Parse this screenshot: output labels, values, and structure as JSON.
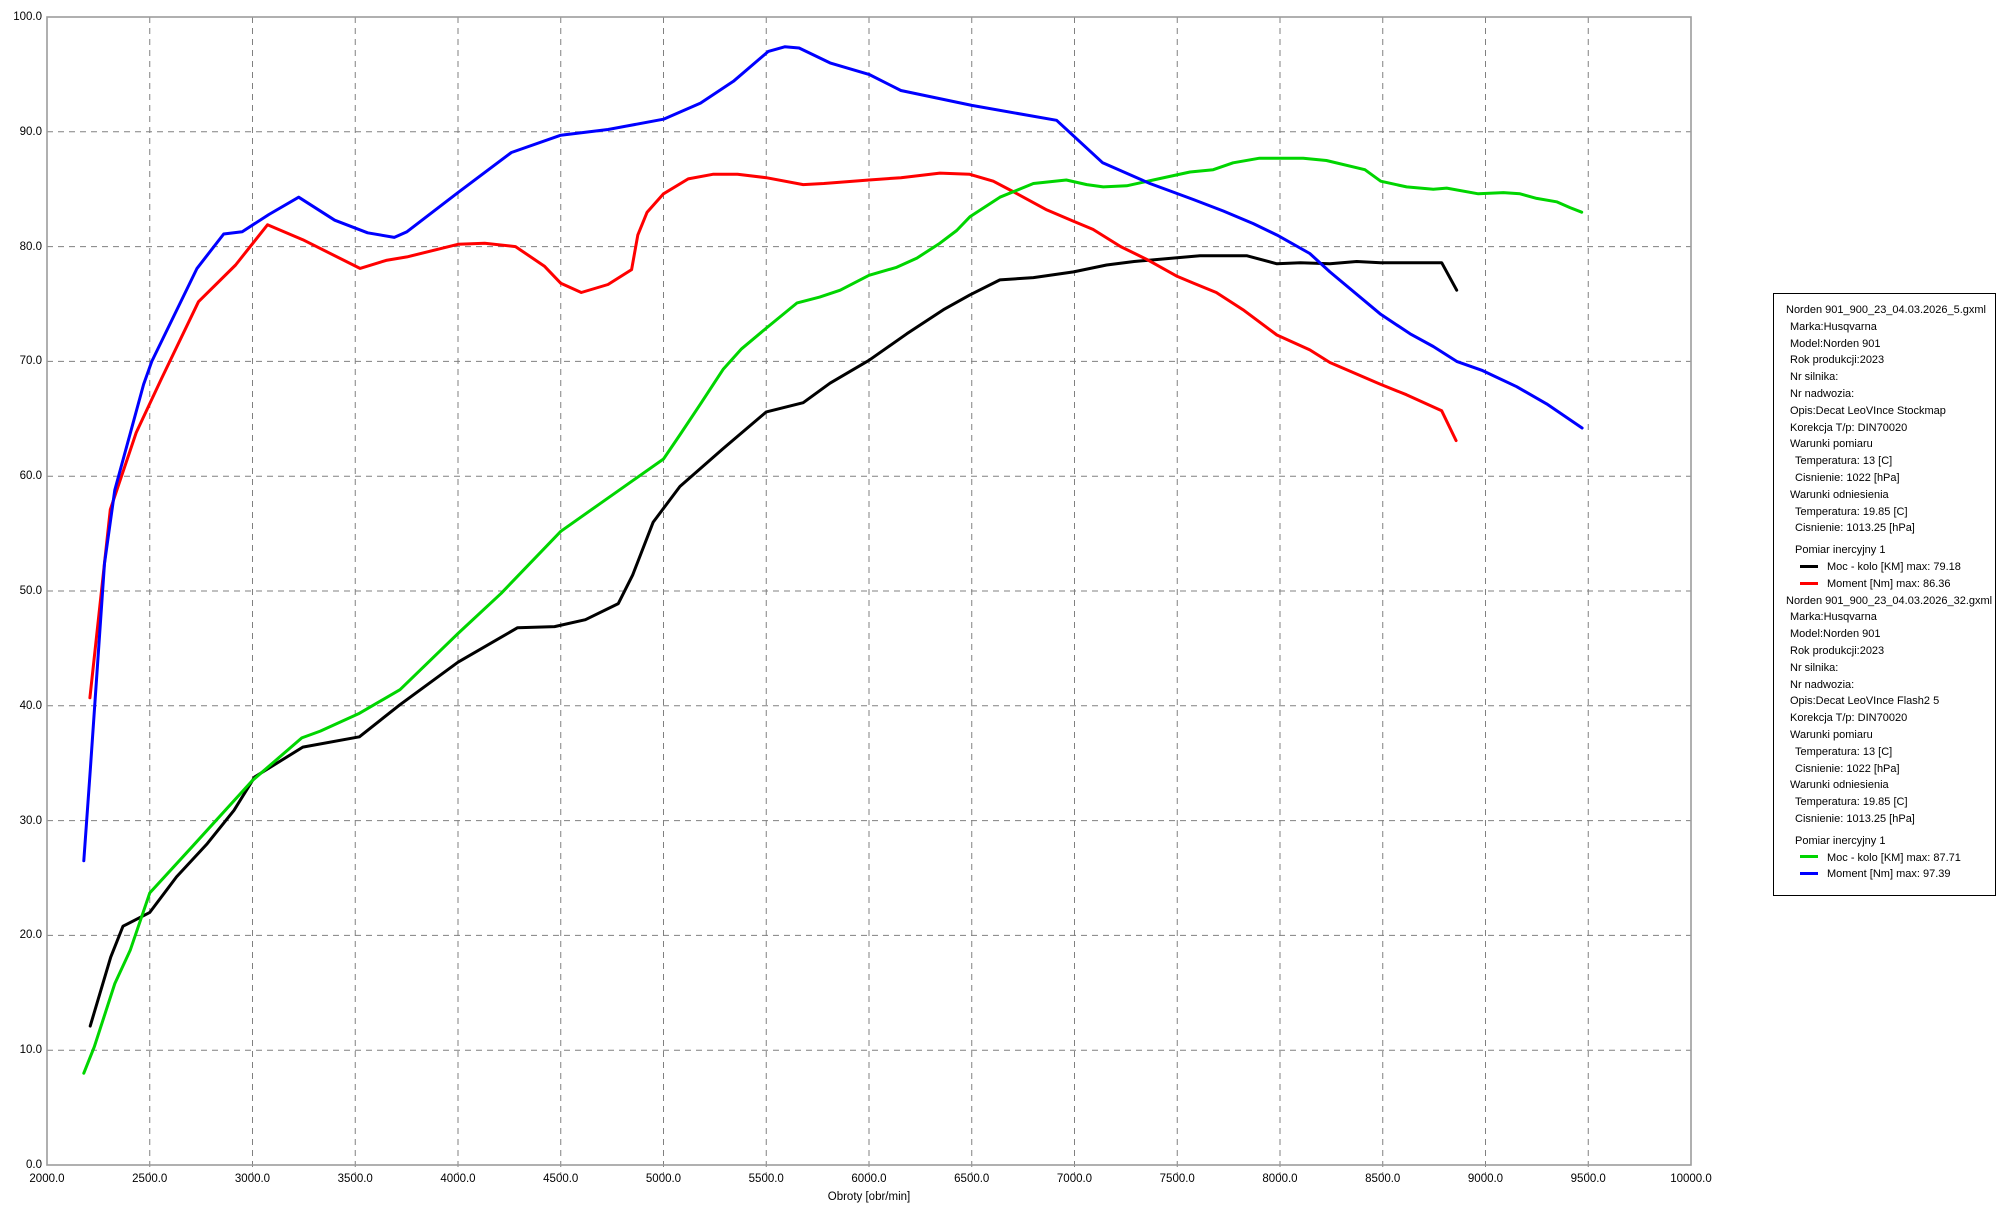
{
  "chart_data": {
    "type": "line",
    "title": "",
    "xlabel": "Obroty [obr/min]",
    "ylabel": "",
    "xlim": [
      2000,
      10000
    ],
    "ylim": [
      0,
      100
    ],
    "x_tick_step": 500,
    "y_tick_step": 10,
    "grid": true,
    "legend_position": "right-panel",
    "series": [
      {
        "name": "Moc - kolo [KM] - Decat LeoVInce Stockmap",
        "color": "#000000",
        "max": 79.18,
        "points": [
          [
            2210,
            12.1
          ],
          [
            2310,
            18.1
          ],
          [
            2370,
            20.8
          ],
          [
            2500,
            22.0
          ],
          [
            2630,
            25.1
          ],
          [
            2780,
            28.0
          ],
          [
            2910,
            30.9
          ],
          [
            3010,
            33.8
          ],
          [
            3245,
            36.4
          ],
          [
            3520,
            37.3
          ],
          [
            3718,
            40.1
          ],
          [
            4000,
            43.8
          ],
          [
            4290,
            46.8
          ],
          [
            4470,
            46.9
          ],
          [
            4620,
            47.5
          ],
          [
            4780,
            48.9
          ],
          [
            4850,
            51.4
          ],
          [
            4950,
            56.0
          ],
          [
            5080,
            59.1
          ],
          [
            5290,
            62.4
          ],
          [
            5500,
            65.6
          ],
          [
            5680,
            66.4
          ],
          [
            5810,
            68.1
          ],
          [
            6000,
            70.1
          ],
          [
            6184,
            72.4
          ],
          [
            6362,
            74.5
          ],
          [
            6492,
            75.8
          ],
          [
            6637,
            77.1
          ],
          [
            6800,
            77.3
          ],
          [
            6995,
            77.8
          ],
          [
            7156,
            78.4
          ],
          [
            7290,
            78.7
          ],
          [
            7416,
            78.9
          ],
          [
            7610,
            79.2
          ],
          [
            7710,
            79.2
          ],
          [
            7840,
            79.2
          ],
          [
            7985,
            78.5
          ],
          [
            8100,
            78.6
          ],
          [
            8243,
            78.5
          ],
          [
            8373,
            78.7
          ],
          [
            8490,
            78.6
          ],
          [
            8633,
            78.6
          ],
          [
            8787,
            78.6
          ],
          [
            8860,
            76.2
          ]
        ]
      },
      {
        "name": "Moment [Nm] - Decat LeoVInce Stockmap",
        "color": "#ff0000",
        "max": 86.36,
        "points": [
          [
            2209,
            40.7
          ],
          [
            2308,
            57.1
          ],
          [
            2434,
            63.8
          ],
          [
            2557,
            68.5
          ],
          [
            2737,
            75.2
          ],
          [
            2918,
            78.4
          ],
          [
            3073,
            81.9
          ],
          [
            3245,
            80.6
          ],
          [
            3523,
            78.1
          ],
          [
            3650,
            78.8
          ],
          [
            3752,
            79.1
          ],
          [
            4000,
            80.2
          ],
          [
            4130,
            80.3
          ],
          [
            4280,
            80.0
          ],
          [
            4420,
            78.3
          ],
          [
            4500,
            76.8
          ],
          [
            4600,
            76.0
          ],
          [
            4730,
            76.7
          ],
          [
            4845,
            78.0
          ],
          [
            4875,
            81.0
          ],
          [
            4920,
            83.0
          ],
          [
            5000,
            84.6
          ],
          [
            5120,
            85.9
          ],
          [
            5240,
            86.3
          ],
          [
            5360,
            86.3
          ],
          [
            5500,
            86.0
          ],
          [
            5680,
            85.4
          ],
          [
            5780,
            85.5
          ],
          [
            6000,
            85.8
          ],
          [
            6155,
            86.0
          ],
          [
            6345,
            86.4
          ],
          [
            6490,
            86.3
          ],
          [
            6605,
            85.7
          ],
          [
            6700,
            84.8
          ],
          [
            6865,
            83.2
          ],
          [
            6995,
            82.2
          ],
          [
            7090,
            81.5
          ],
          [
            7225,
            80.0
          ],
          [
            7350,
            78.9
          ],
          [
            7500,
            77.4
          ],
          [
            7580,
            76.8
          ],
          [
            7690,
            76.0
          ],
          [
            7820,
            74.5
          ],
          [
            7985,
            72.3
          ],
          [
            8145,
            71.0
          ],
          [
            8243,
            69.9
          ],
          [
            8490,
            68.0
          ],
          [
            8615,
            67.1
          ],
          [
            8787,
            65.7
          ],
          [
            8857,
            63.1
          ]
        ]
      },
      {
        "name": "Moc - kolo [KM] - Decat LeoVInce Flash2 5",
        "color": "#00d500",
        "max": 87.71,
        "points": [
          [
            2179,
            8.0
          ],
          [
            2230,
            10.3
          ],
          [
            2330,
            15.8
          ],
          [
            2405,
            18.7
          ],
          [
            2500,
            23.7
          ],
          [
            2700,
            27.6
          ],
          [
            3000,
            33.5
          ],
          [
            3240,
            37.2
          ],
          [
            3330,
            37.8
          ],
          [
            3516,
            39.3
          ],
          [
            3718,
            41.4
          ],
          [
            4000,
            46.3
          ],
          [
            4210,
            49.8
          ],
          [
            4500,
            55.2
          ],
          [
            4690,
            57.6
          ],
          [
            5000,
            61.5
          ],
          [
            5080,
            63.6
          ],
          [
            5180,
            66.3
          ],
          [
            5290,
            69.3
          ],
          [
            5380,
            71.1
          ],
          [
            5500,
            72.9
          ],
          [
            5650,
            75.1
          ],
          [
            5760,
            75.6
          ],
          [
            5860,
            76.2
          ],
          [
            6000,
            77.5
          ],
          [
            6135,
            78.2
          ],
          [
            6233,
            79.0
          ],
          [
            6345,
            80.3
          ],
          [
            6427,
            81.4
          ],
          [
            6491,
            82.6
          ],
          [
            6637,
            84.3
          ],
          [
            6800,
            85.5
          ],
          [
            6960,
            85.8
          ],
          [
            7060,
            85.4
          ],
          [
            7140,
            85.2
          ],
          [
            7254,
            85.3
          ],
          [
            7383,
            85.8
          ],
          [
            7562,
            86.5
          ],
          [
            7675,
            86.7
          ],
          [
            7772,
            87.3
          ],
          [
            7900,
            87.7
          ],
          [
            8030,
            87.7
          ],
          [
            8113,
            87.7
          ],
          [
            8226,
            87.5
          ],
          [
            8413,
            86.7
          ],
          [
            8490,
            85.7
          ],
          [
            8616,
            85.2
          ],
          [
            8746,
            85.0
          ],
          [
            8811,
            85.1
          ],
          [
            8965,
            84.6
          ],
          [
            9087,
            84.7
          ],
          [
            9168,
            84.6
          ],
          [
            9249,
            84.2
          ],
          [
            9346,
            83.9
          ],
          [
            9411,
            83.4
          ],
          [
            9468,
            83.0
          ]
        ]
      },
      {
        "name": "Moment [Nm] - Decat LeoVInce Flash2 5",
        "color": "#0000ff",
        "max": 97.39,
        "points": [
          [
            2179,
            26.5
          ],
          [
            2210,
            34.3
          ],
          [
            2280,
            52.4
          ],
          [
            2330,
            58.8
          ],
          [
            2470,
            68.0
          ],
          [
            2510,
            70.0
          ],
          [
            2730,
            78.1
          ],
          [
            2860,
            81.1
          ],
          [
            2950,
            81.3
          ],
          [
            3080,
            82.8
          ],
          [
            3225,
            84.3
          ],
          [
            3400,
            82.3
          ],
          [
            3560,
            81.2
          ],
          [
            3690,
            80.8
          ],
          [
            3752,
            81.3
          ],
          [
            4000,
            84.7
          ],
          [
            4260,
            88.2
          ],
          [
            4500,
            89.7
          ],
          [
            4730,
            90.2
          ],
          [
            5000,
            91.1
          ],
          [
            5180,
            92.5
          ],
          [
            5340,
            94.4
          ],
          [
            5510,
            97.0
          ],
          [
            5590,
            97.4
          ],
          [
            5660,
            97.3
          ],
          [
            5810,
            96.0
          ],
          [
            6000,
            95.0
          ],
          [
            6155,
            93.6
          ],
          [
            6500,
            92.3
          ],
          [
            6913,
            91.0
          ],
          [
            7137,
            87.3
          ],
          [
            7367,
            85.5
          ],
          [
            7578,
            84.1
          ],
          [
            7724,
            83.1
          ],
          [
            7870,
            82.0
          ],
          [
            7986,
            81.0
          ],
          [
            8145,
            79.4
          ],
          [
            8243,
            77.8
          ],
          [
            8490,
            74.1
          ],
          [
            8633,
            72.4
          ],
          [
            8746,
            71.3
          ],
          [
            8860,
            70.0
          ],
          [
            8986,
            69.2
          ],
          [
            9152,
            67.8
          ],
          [
            9298,
            66.3
          ],
          [
            9470,
            64.2
          ]
        ]
      }
    ]
  },
  "info_panel": {
    "blocks": [
      {
        "lines": [
          {
            "text": "Norden 901_900_23_04.03.2026_5.gxml",
            "indent": 0
          },
          {
            "text": "Marka:Husqvarna",
            "indent": 1
          },
          {
            "text": "Model:Norden 901",
            "indent": 1
          },
          {
            "text": "Rok produkcji:2023",
            "indent": 1
          },
          {
            "text": "Nr silnika:",
            "indent": 1
          },
          {
            "text": "Nr nadwozia:",
            "indent": 1
          },
          {
            "text": "Opis:Decat LeoVInce Stockmap",
            "indent": 1
          },
          {
            "text": "Korekcja T/p: DIN70020",
            "indent": 1
          },
          {
            "text": "Warunki pomiaru",
            "indent": 1
          },
          {
            "text": "Temperatura: 13 [C]",
            "indent": 2
          },
          {
            "text": "Cisnienie: 1022 [hPa]",
            "indent": 2
          },
          {
            "text": "Warunki odniesienia",
            "indent": 1
          },
          {
            "text": "Temperatura: 19.85 [C]",
            "indent": 2
          },
          {
            "text": "Cisnienie: 1013.25 [hPa]",
            "indent": 2
          }
        ],
        "pomiar_header": "Pomiar inercyjny 1",
        "entries": [
          {
            "color": "#000000",
            "label": "Moc - kolo [KM] max: 79.18"
          },
          {
            "color": "#ff0000",
            "label": "Moment [Nm] max: 86.36"
          }
        ]
      },
      {
        "lines": [
          {
            "text": "Norden 901_900_23_04.03.2026_32.gxml",
            "indent": 0
          },
          {
            "text": "Marka:Husqvarna",
            "indent": 1
          },
          {
            "text": "Model:Norden 901",
            "indent": 1
          },
          {
            "text": "Rok produkcji:2023",
            "indent": 1
          },
          {
            "text": "Nr silnika:",
            "indent": 1
          },
          {
            "text": "Nr nadwozia:",
            "indent": 1
          },
          {
            "text": "Opis:Decat LeoVInce Flash2 5",
            "indent": 1
          },
          {
            "text": "Korekcja T/p: DIN70020",
            "indent": 1
          },
          {
            "text": "Warunki pomiaru",
            "indent": 1
          },
          {
            "text": "Temperatura: 13 [C]",
            "indent": 2
          },
          {
            "text": "Cisnienie: 1022 [hPa]",
            "indent": 2
          },
          {
            "text": "Warunki odniesienia",
            "indent": 1
          },
          {
            "text": "Temperatura: 19.85 [C]",
            "indent": 2
          },
          {
            "text": "Cisnienie: 1013.25 [hPa]",
            "indent": 2
          }
        ],
        "pomiar_header": "Pomiar inercyjny 1",
        "entries": [
          {
            "color": "#00d500",
            "label": "Moc - kolo [KM] max: 87.71"
          },
          {
            "color": "#0000ff",
            "label": "Moment [Nm] max: 97.39"
          }
        ]
      }
    ]
  },
  "style_colors": {
    "grid": "#808080",
    "plot_border": "#9c9c9c",
    "background": "#ffffff",
    "text": "#000000"
  }
}
